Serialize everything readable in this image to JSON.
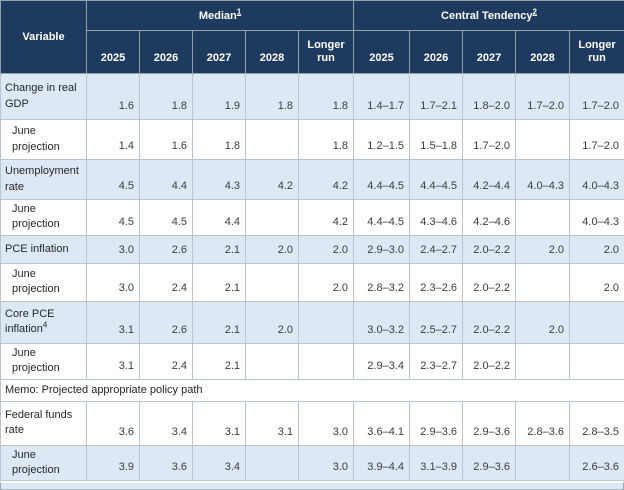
{
  "table": {
    "header": {
      "variable_label": "Variable",
      "groups": [
        {
          "label": "Median",
          "footnote": "1"
        },
        {
          "label": "Central Tendency",
          "footnote": "2"
        }
      ],
      "years": [
        "2025",
        "2026",
        "2027",
        "2028",
        "Longer run"
      ]
    },
    "rows": [
      {
        "label": "Change in real GDP",
        "shade": true,
        "median": [
          "1.6",
          "1.8",
          "1.9",
          "1.8",
          "1.8"
        ],
        "central": [
          "1.4–1.7",
          "1.7–2.1",
          "1.8–2.0",
          "1.7–2.0",
          "1.7–2.0"
        ]
      },
      {
        "label": "June projection",
        "indent": true,
        "median": [
          "1.4",
          "1.6",
          "1.8",
          "",
          "1.8"
        ],
        "central": [
          "1.2–1.5",
          "1.5–1.8",
          "1.7–2.0",
          "",
          "1.7–2.0"
        ]
      },
      {
        "label": "Unemployment rate",
        "shade": true,
        "median": [
          "4.5",
          "4.4",
          "4.3",
          "4.2",
          "4.2"
        ],
        "central": [
          "4.4–4.5",
          "4.4–4.5",
          "4.2–4.4",
          "4.0–4.3",
          "4.0–4.3"
        ]
      },
      {
        "label": "June projection",
        "indent": true,
        "median": [
          "4.5",
          "4.5",
          "4.4",
          "",
          "4.2"
        ],
        "central": [
          "4.4–4.5",
          "4.3–4.6",
          "4.2–4.6",
          "",
          "4.0–4.3"
        ]
      },
      {
        "label": "PCE inflation",
        "shade": true,
        "median": [
          "3.0",
          "2.6",
          "2.1",
          "2.0",
          "2.0"
        ],
        "central": [
          "2.9–3.0",
          "2.4–2.7",
          "2.0–2.2",
          "2.0",
          "2.0"
        ]
      },
      {
        "label": "June projection",
        "indent": true,
        "median": [
          "3.0",
          "2.4",
          "2.1",
          "",
          "2.0"
        ],
        "central": [
          "2.8–3.2",
          "2.3–2.6",
          "2.0–2.2",
          "",
          "2.0"
        ]
      },
      {
        "label": "Core PCE inflation",
        "footnote": "4",
        "shade": true,
        "median": [
          "3.1",
          "2.6",
          "2.1",
          "2.0",
          ""
        ],
        "central": [
          "3.0–3.2",
          "2.5–2.7",
          "2.0–2.2",
          "2.0",
          ""
        ]
      },
      {
        "label": "June projection",
        "indent": true,
        "median": [
          "3.1",
          "2.4",
          "2.1",
          "",
          ""
        ],
        "central": [
          "2.9–3.4",
          "2.3–2.7",
          "2.0–2.2",
          "",
          ""
        ]
      },
      {
        "type": "memo",
        "label": "Memo: Projected appropriate policy path"
      },
      {
        "label": "Federal funds rate",
        "median": [
          "3.6",
          "3.4",
          "3.1",
          "3.1",
          "3.0"
        ],
        "central": [
          "3.6–4.1",
          "2.9–3.6",
          "2.9–3.6",
          "2.8–3.6",
          "2.8–3.5"
        ]
      },
      {
        "label": "June projection",
        "indent": true,
        "shade": true,
        "median": [
          "3.9",
          "3.6",
          "3.4",
          "",
          "3.0"
        ],
        "central": [
          "3.9–4.4",
          "3.1–3.9",
          "2.9–3.6",
          "",
          "2.6–3.6"
        ]
      }
    ],
    "colors": {
      "header_bg": "#1F3A5F",
      "header_text": "#FFFFFF",
      "shade_bg": "#DCE9F5",
      "body_text": "#3C3C3C"
    }
  }
}
